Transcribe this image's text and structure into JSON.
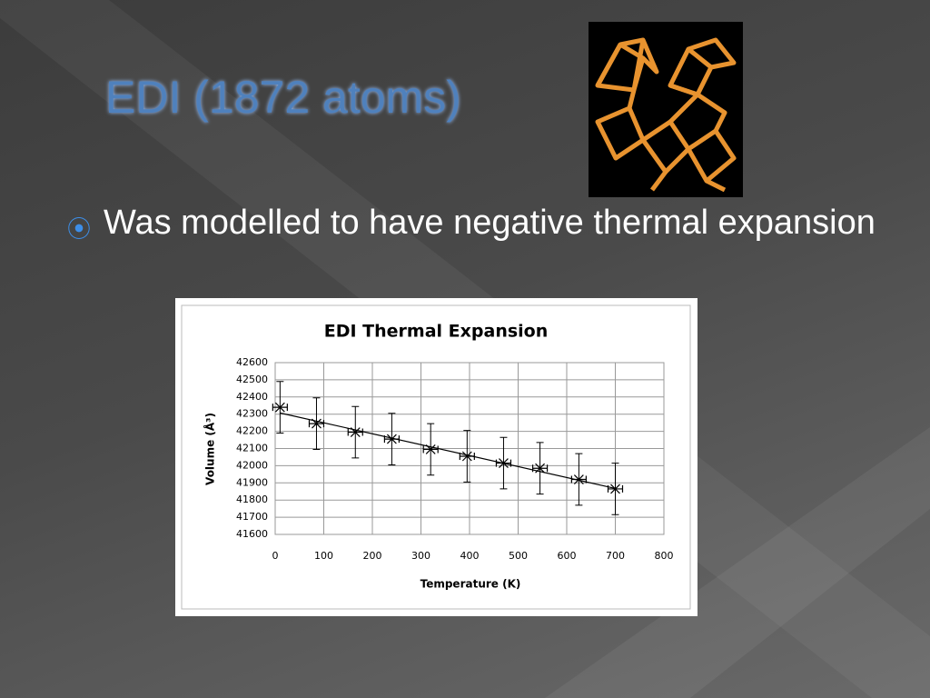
{
  "slide": {
    "title": "EDI (1872 atoms)",
    "bullets": [
      "Was modelled to have negative thermal expansion"
    ]
  },
  "chart_data": {
    "type": "scatter",
    "title": "EDI Thermal Expansion",
    "x_label": "Temperature (K)",
    "y_label": "Volume (Å³)",
    "x": [
      10,
      85,
      165,
      240,
      320,
      395,
      470,
      545,
      625,
      700
    ],
    "series": [
      {
        "color": "#000000",
        "values": [
          42340,
          42245,
          42195,
          42155,
          42095,
          42055,
          42015,
          41985,
          41920,
          41865
        ],
        "errors": [
          150,
          150,
          150,
          150,
          150,
          150,
          150,
          150,
          150,
          150
        ]
      }
    ],
    "trendline": "linear",
    "xlim": [
      0,
      800
    ],
    "xticks": [
      0,
      100,
      200,
      300,
      400,
      500,
      600,
      700,
      800
    ],
    "ylim": [
      41600,
      42600
    ],
    "yticks": [
      41600,
      41700,
      41800,
      41900,
      42000,
      42100,
      42200,
      42300,
      42400,
      42500,
      42600
    ],
    "grid": true
  }
}
